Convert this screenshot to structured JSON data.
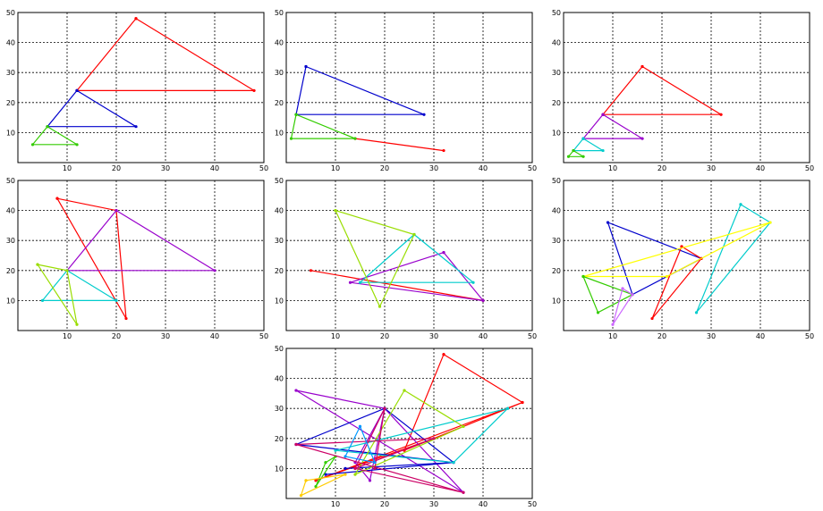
{
  "chart_data": [
    {
      "type": "line",
      "xlim": [
        0,
        50
      ],
      "ylim": [
        0,
        50
      ],
      "grid": true,
      "series": [
        {
          "color": "#ff0000",
          "points": [
            [
              24,
              48
            ],
            [
              48,
              24
            ],
            [
              12,
              24
            ],
            [
              24,
              48
            ]
          ]
        },
        {
          "color": "#0000cc",
          "points": [
            [
              12,
              24
            ],
            [
              24,
              12
            ],
            [
              6,
              12
            ],
            [
              12,
              24
            ]
          ]
        },
        {
          "color": "#33cc00",
          "points": [
            [
              6,
              12
            ],
            [
              12,
              6
            ],
            [
              3,
              6
            ],
            [
              6,
              12
            ]
          ]
        }
      ]
    },
    {
      "type": "line",
      "xlim": [
        0,
        50
      ],
      "ylim": [
        0,
        50
      ],
      "grid": true,
      "series": [
        {
          "color": "#ff0000",
          "points": [
            [
              14,
              8
            ],
            [
              32,
              4
            ]
          ]
        },
        {
          "color": "#0000cc",
          "points": [
            [
              4,
              32
            ],
            [
              28,
              16
            ],
            [
              2,
              16
            ],
            [
              4,
              32
            ]
          ]
        },
        {
          "color": "#33cc00",
          "points": [
            [
              2,
              16
            ],
            [
              14,
              8
            ],
            [
              1,
              8
            ],
            [
              2,
              16
            ]
          ]
        }
      ]
    },
    {
      "type": "line",
      "xlim": [
        0,
        50
      ],
      "ylim": [
        0,
        50
      ],
      "grid": true,
      "series": [
        {
          "color": "#ff0000",
          "points": [
            [
              16,
              32
            ],
            [
              32,
              16
            ],
            [
              8,
              16
            ],
            [
              16,
              32
            ]
          ]
        },
        {
          "color": "#9900cc",
          "points": [
            [
              8,
              16
            ],
            [
              16,
              8
            ],
            [
              4,
              8
            ],
            [
              8,
              16
            ]
          ]
        },
        {
          "color": "#00cccc",
          "points": [
            [
              4,
              8
            ],
            [
              8,
              4
            ],
            [
              2,
              4
            ],
            [
              4,
              8
            ]
          ]
        },
        {
          "color": "#33cc00",
          "points": [
            [
              2,
              4
            ],
            [
              4,
              2
            ],
            [
              1,
              2
            ],
            [
              2,
              4
            ]
          ]
        }
      ]
    },
    {
      "type": "line",
      "xlim": [
        0,
        50
      ],
      "ylim": [
        0,
        50
      ],
      "grid": true,
      "series": [
        {
          "color": "#ff0000",
          "points": [
            [
              8,
              44
            ],
            [
              20,
              40
            ],
            [
              22,
              4
            ],
            [
              8,
              44
            ]
          ]
        },
        {
          "color": "#9900cc",
          "points": [
            [
              20,
              40
            ],
            [
              40,
              20
            ],
            [
              10,
              20
            ],
            [
              20,
              40
            ]
          ]
        },
        {
          "color": "#00cccc",
          "points": [
            [
              10,
              20
            ],
            [
              20,
              10
            ],
            [
              5,
              10
            ],
            [
              10,
              20
            ]
          ]
        },
        {
          "color": "#99dd00",
          "points": [
            [
              4,
              22
            ],
            [
              10,
              20
            ],
            [
              12,
              2
            ],
            [
              4,
              22
            ]
          ]
        }
      ]
    },
    {
      "type": "line",
      "xlim": [
        0,
        50
      ],
      "ylim": [
        0,
        50
      ],
      "grid": true,
      "series": [
        {
          "color": "#ff0000",
          "points": [
            [
              5,
              20
            ],
            [
              40,
              10
            ]
          ]
        },
        {
          "color": "#9900cc",
          "points": [
            [
              32,
              26
            ],
            [
              40,
              10
            ],
            [
              13,
              16
            ],
            [
              32,
              26
            ]
          ]
        },
        {
          "color": "#00cccc",
          "points": [
            [
              26,
              32
            ],
            [
              38,
              16
            ],
            [
              15,
              16
            ],
            [
              26,
              32
            ]
          ]
        },
        {
          "color": "#99dd00",
          "points": [
            [
              10,
              40
            ],
            [
              26,
              32
            ],
            [
              19,
              8
            ],
            [
              10,
              40
            ]
          ]
        }
      ]
    },
    {
      "type": "line",
      "xlim": [
        0,
        50
      ],
      "ylim": [
        0,
        50
      ],
      "grid": true,
      "series": [
        {
          "color": "#0000cc",
          "points": [
            [
              9,
              36
            ],
            [
              28,
              24
            ],
            [
              14,
              12
            ],
            [
              9,
              36
            ]
          ]
        },
        {
          "color": "#ff0000",
          "points": [
            [
              24,
              28
            ],
            [
              28,
              24
            ],
            [
              18,
              4
            ],
            [
              24,
              28
            ]
          ]
        },
        {
          "color": "#00cccc",
          "points": [
            [
              36,
              42
            ],
            [
              42,
              36
            ],
            [
              27,
              6
            ],
            [
              36,
              42
            ]
          ]
        },
        {
          "color": "#ffff00",
          "points": [
            [
              4,
              18
            ],
            [
              42,
              36
            ],
            [
              21,
              18
            ],
            [
              4,
              18
            ]
          ]
        },
        {
          "color": "#33cc00",
          "points": [
            [
              4,
              18
            ],
            [
              14,
              12
            ],
            [
              7,
              6
            ],
            [
              4,
              18
            ]
          ]
        },
        {
          "color": "#cc66ff",
          "points": [
            [
              12,
              14
            ],
            [
              14,
              12
            ],
            [
              10,
              2
            ],
            [
              12,
              14
            ]
          ]
        }
      ]
    },
    {
      "type": "line",
      "xlim": [
        0,
        50
      ],
      "ylim": [
        0,
        50
      ],
      "grid": true,
      "series": [
        {
          "color": "#ff0000",
          "points": [
            [
              32,
              48
            ],
            [
              48,
              32
            ],
            [
              24,
              16
            ],
            [
              32,
              48
            ]
          ]
        },
        {
          "color": "#ff0000",
          "points": [
            [
              48,
              32
            ],
            [
              6,
              6
            ],
            [
              30,
              20
            ]
          ]
        },
        {
          "color": "#9900cc",
          "points": [
            [
              2,
              36
            ],
            [
              20,
              30
            ],
            [
              36,
              2
            ],
            [
              2,
              36
            ]
          ]
        },
        {
          "color": "#9900cc",
          "points": [
            [
              20,
              30
            ],
            [
              17,
              6
            ],
            [
              14,
              12
            ],
            [
              20,
              30
            ]
          ]
        },
        {
          "color": "#0000cc",
          "points": [
            [
              2,
              18
            ],
            [
              20,
              30
            ],
            [
              34,
              12
            ],
            [
              2,
              18
            ]
          ]
        },
        {
          "color": "#0000cc",
          "points": [
            [
              12,
              10
            ],
            [
              34,
              12
            ],
            [
              8,
              8
            ]
          ]
        },
        {
          "color": "#00cccc",
          "points": [
            [
              45,
              30
            ],
            [
              34,
              12
            ],
            [
              10,
              16
            ],
            [
              45,
              30
            ]
          ]
        },
        {
          "color": "#99dd00",
          "points": [
            [
              24,
              36
            ],
            [
              36,
              24
            ],
            [
              14,
              8
            ],
            [
              24,
              36
            ]
          ]
        },
        {
          "color": "#33cc00",
          "points": [
            [
              8,
              12
            ],
            [
              10,
              14
            ],
            [
              6,
              4
            ],
            [
              8,
              12
            ]
          ]
        },
        {
          "color": "#ffcc00",
          "points": [
            [
              4,
              6
            ],
            [
              12,
              8
            ],
            [
              3,
              1
            ],
            [
              4,
              6
            ]
          ]
        },
        {
          "color": "#cc0066",
          "points": [
            [
              2,
              18
            ],
            [
              36,
              2
            ],
            [
              14,
              10
            ],
            [
              30,
              20
            ],
            [
              2,
              18
            ]
          ]
        },
        {
          "color": "#cc0066",
          "points": [
            [
              14,
              10
            ],
            [
              20,
              30
            ],
            [
              18,
              10
            ]
          ]
        },
        {
          "color": "#0099ff",
          "points": [
            [
              15,
              24
            ],
            [
              18,
              12
            ],
            [
              12,
              14
            ],
            [
              15,
              24
            ]
          ]
        }
      ]
    }
  ]
}
